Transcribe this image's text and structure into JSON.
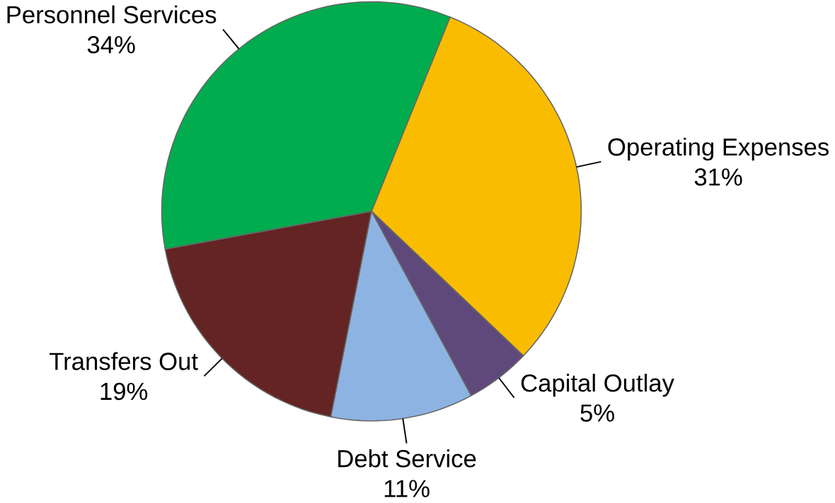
{
  "chart_data": {
    "type": "pie",
    "categories": [
      "Operating Expenses",
      "Capital Outlay",
      "Debt Service",
      "Transfers Out",
      "Personnel Services"
    ],
    "values": [
      31,
      5,
      11,
      19,
      34
    ],
    "value_labels": [
      "31%",
      "5%",
      "11%",
      "19%",
      "34%"
    ],
    "colors": [
      "#f9bc00",
      "#5f497a",
      "#8db3e2",
      "#632423",
      "#00ac4e"
    ]
  }
}
